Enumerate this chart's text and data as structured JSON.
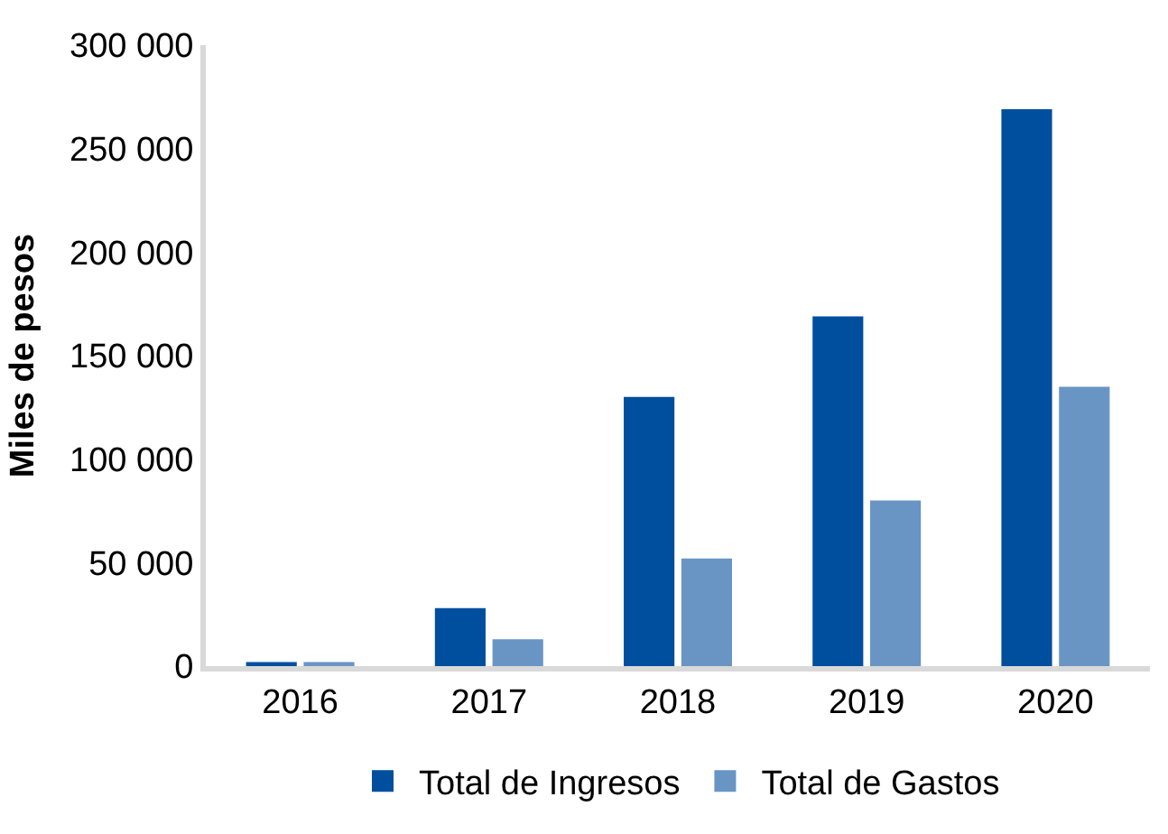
{
  "chart_data": {
    "type": "bar",
    "ylabel": "Miles de pesos",
    "categories": [
      "2016",
      "2017",
      "2018",
      "2019",
      "2020"
    ],
    "series": [
      {
        "name": "Total de Ingresos",
        "color": "#004f9f",
        "values": [
          2000,
          28000,
          130000,
          169000,
          269000
        ]
      },
      {
        "name": "Total de Gastos",
        "color": "#6895c4",
        "values": [
          2000,
          13000,
          52000,
          80000,
          135000
        ]
      }
    ],
    "ylim": [
      0,
      300000
    ],
    "yticks": [
      {
        "value": 0,
        "label": "0"
      },
      {
        "value": 50000,
        "label": "50 000"
      },
      {
        "value": 100000,
        "label": "100 000"
      },
      {
        "value": 150000,
        "label": "150 000"
      },
      {
        "value": 200000,
        "label": "200 000"
      },
      {
        "value": 250000,
        "label": "250 000"
      },
      {
        "value": 300000,
        "label": "300 000"
      }
    ],
    "legend": "bottom"
  }
}
